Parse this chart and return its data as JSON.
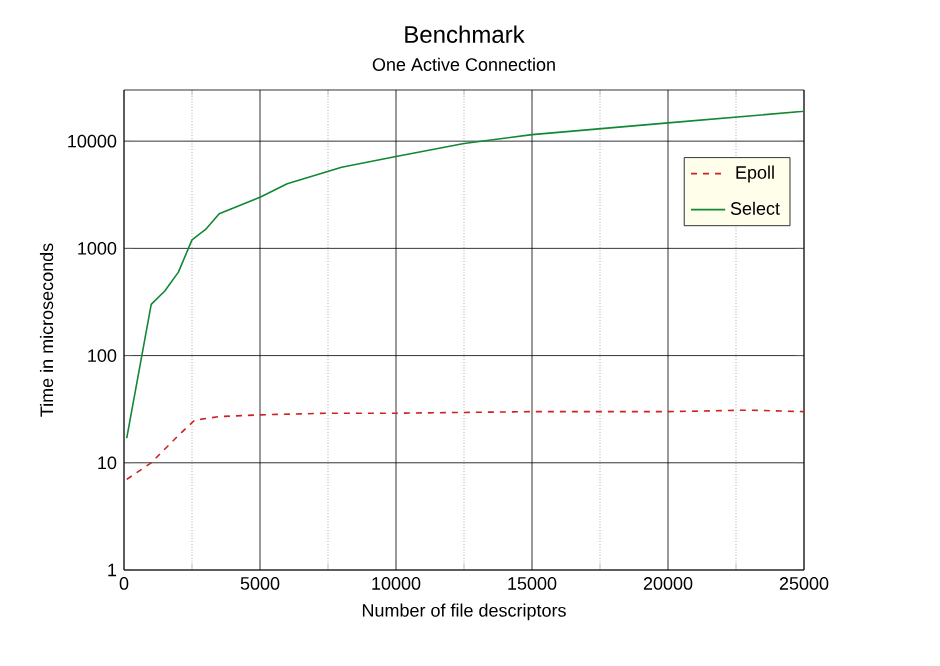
{
  "chart_data": {
    "type": "line",
    "title": "Benchmark",
    "subtitle": "One Active Connection",
    "xlabel": "Number of file descriptors",
    "ylabel": "Time in microseconds",
    "xlim": [
      0,
      25000
    ],
    "xticks": [
      0,
      5000,
      10000,
      15000,
      20000,
      25000
    ],
    "ylim": [
      1,
      30000
    ],
    "yticks": [
      1,
      10,
      100,
      1000,
      10000
    ],
    "log": "y",
    "grid": true,
    "legend": "top right",
    "series": [
      {
        "name": "Epoll",
        "color": "#cc2222",
        "line_style": "dashed",
        "x": [
          100,
          1000,
          2000,
          2600,
          3500,
          5000,
          7500,
          10000,
          15000,
          20000,
          23000,
          25000
        ],
        "values": [
          7,
          10,
          18,
          25,
          27,
          28,
          29,
          29,
          30,
          30,
          31,
          30
        ]
      },
      {
        "name": "Select",
        "color": "#118833",
        "line_style": "solid",
        "x": [
          100,
          1000,
          1500,
          2000,
          2500,
          3000,
          3500,
          5000,
          6000,
          8000,
          10000,
          12500,
          15000,
          20000,
          25000
        ],
        "values": [
          17,
          300,
          400,
          600,
          1200,
          1500,
          2100,
          3000,
          4000,
          5700,
          7200,
          9500,
          11500,
          14800,
          19000
        ]
      }
    ]
  }
}
